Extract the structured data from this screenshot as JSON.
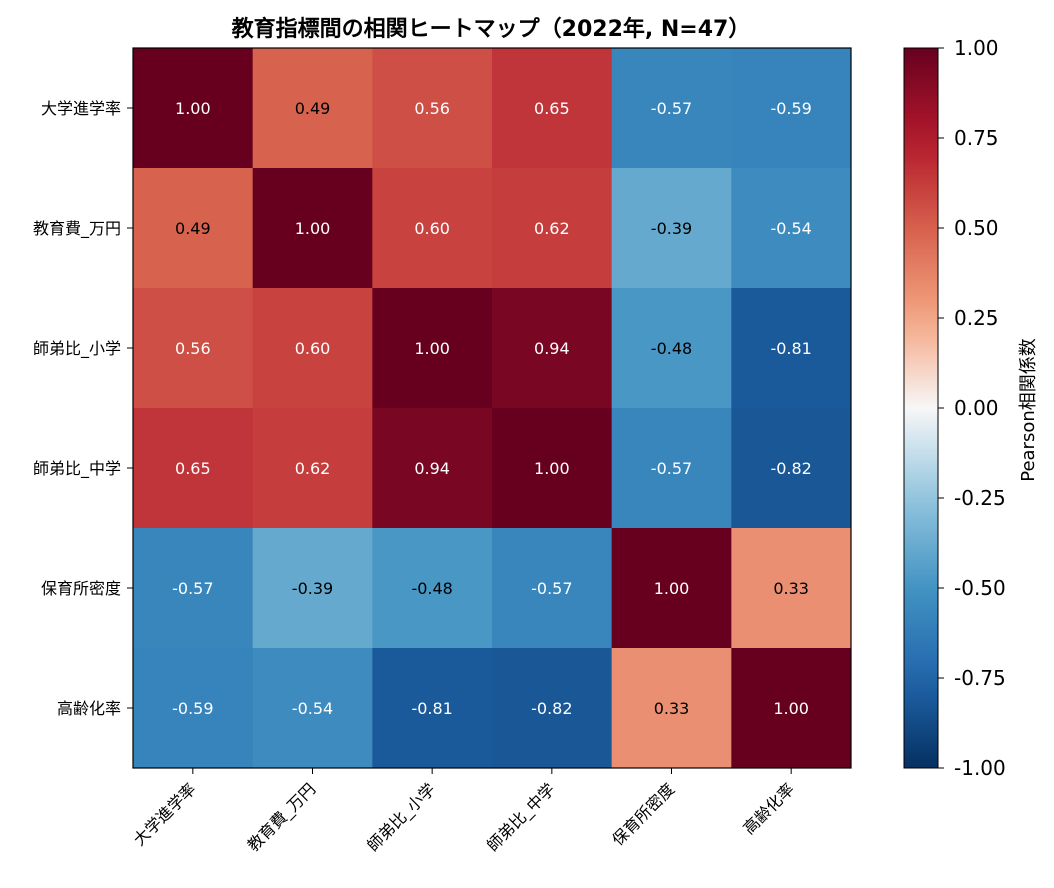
{
  "chart_data": {
    "type": "heatmap",
    "title": "教育指標間の相関ヒートマップ（2022年, N=47）",
    "rows": [
      "大学進学率",
      "教育費_万円",
      "師弟比_小学",
      "師弟比_中学",
      "保育所密度",
      "高齢化率"
    ],
    "cols": [
      "大学進学率",
      "教育費_万円",
      "師弟比_小学",
      "師弟比_中学",
      "保育所密度",
      "高齢化率"
    ],
    "values": [
      [
        1.0,
        0.49,
        0.56,
        0.65,
        -0.57,
        -0.59
      ],
      [
        0.49,
        1.0,
        0.6,
        0.62,
        -0.39,
        -0.54
      ],
      [
        0.56,
        0.6,
        1.0,
        0.94,
        -0.48,
        -0.81
      ],
      [
        0.65,
        0.62,
        0.94,
        1.0,
        -0.57,
        -0.82
      ],
      [
        -0.57,
        -0.39,
        -0.48,
        -0.57,
        1.0,
        0.33
      ],
      [
        -0.59,
        -0.54,
        -0.81,
        -0.82,
        0.33,
        1.0
      ]
    ],
    "value_format": "0.00",
    "colormap": "RdBu_r",
    "vmin": -1.0,
    "vmax": 1.0,
    "colorbar": {
      "label": "Pearson相関係数",
      "ticks": [
        1.0,
        0.75,
        0.5,
        0.25,
        0.0,
        -0.25,
        -0.5,
        -0.75,
        -1.0
      ],
      "tick_labels": [
        "1.00",
        "0.75",
        "0.50",
        "0.25",
        "0.00",
        "-0.25",
        "-0.50",
        "-0.75",
        "-1.00"
      ]
    }
  }
}
